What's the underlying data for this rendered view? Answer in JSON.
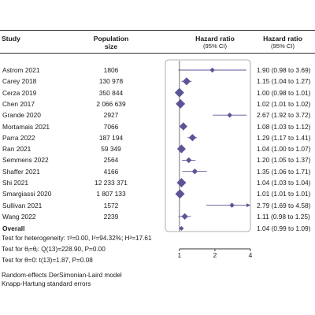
{
  "headers": {
    "study": "Study",
    "population_line1": "Population",
    "population_line2": "size",
    "hr_line1": "Hazard ratio",
    "hr_line2": "(95% CI)",
    "hrci_line1": "Hazard ratio",
    "hrci_line2": "(95% CI)"
  },
  "rows": [
    {
      "study": "Astrom 2021",
      "population": "1806",
      "ci_text": "1.90 (0.98 to 3.69)"
    },
    {
      "study": "Carey 2018",
      "population": "130 978",
      "ci_text": "1.15 (1.04 to 1.27)"
    },
    {
      "study": "Cerza 2019",
      "population": "350 844",
      "ci_text": "1.00 (0.98 to 1.01)"
    },
    {
      "study": "Chen 2017",
      "population": "2 066 639",
      "ci_text": "1.02 (1.01 to 1.02)"
    },
    {
      "study": "Grande 2020",
      "population": "2927",
      "ci_text": "2.67 (1.92 to 3.72)"
    },
    {
      "study": "Mortamais 2021",
      "population": "7066",
      "ci_text": "1.08 (1.03 to 1.12)"
    },
    {
      "study": "Parra 2022",
      "population": "187 194",
      "ci_text": "1.29 (1.17 to 1.41)"
    },
    {
      "study": "Ran 2021",
      "population": "59 349",
      "ci_text": "1.04 (1.00 to 1.07)"
    },
    {
      "study": "Semmens 2022",
      "population": "2564",
      "ci_text": "1.20 (1.05 to 1.37)"
    },
    {
      "study": "Shaffer 2021",
      "population": "4166",
      "ci_text": "1.35 (1.06 to 1.71)"
    },
    {
      "study": "Shi 2021",
      "population": "12 233 371",
      "ci_text": "1.04 (1.03 to 1.04)"
    },
    {
      "study": "Smargiassi 2020",
      "population": "1 807 133",
      "ci_text": "1.01 (1.01 to 1.01)"
    },
    {
      "study": "Sullivan 2021",
      "population": "1572",
      "ci_text": "2.79 (1.69 to 4.58)"
    },
    {
      "study": "Wang 2022",
      "population": "2239",
      "ci_text": "1.11 (0.98 to 1.25)"
    }
  ],
  "overall": {
    "study": "Overall",
    "ci_text": "1.04 (0.99 to 1.09)"
  },
  "footer": {
    "heterogeneity": "Test for heterogeneity: τ²=0.00, I²=94.32%; H²=17.61",
    "theta_i": "Test for θᵢ=θⱼ: Q(13)=228.90, P=0.00",
    "theta_0": "Test for θ=0: t(13)=1.87, P=0.08",
    "model_line1": "Random-effects DerSimonian-Laird model",
    "model_line2": "Knapp-Hartung standard errors"
  },
  "colors": {
    "marker": "#5b5497",
    "axis": "#333333",
    "text": "#1a1a1a"
  },
  "chart_data": {
    "type": "forest",
    "scale": "log",
    "xlim": [
      0.76,
      4
    ],
    "xticks": [
      1,
      2,
      4
    ],
    "reference_line": 1,
    "series": [
      {
        "study": "Astrom 2021",
        "hr": 1.9,
        "lo": 0.98,
        "hi": 3.69,
        "arrow_right": false
      },
      {
        "study": "Carey 2018",
        "hr": 1.15,
        "lo": 1.04,
        "hi": 1.27
      },
      {
        "study": "Cerza 2019",
        "hr": 1.0,
        "lo": 0.98,
        "hi": 1.01
      },
      {
        "study": "Chen 2017",
        "hr": 1.02,
        "lo": 1.01,
        "hi": 1.02
      },
      {
        "study": "Grande 2020",
        "hr": 2.67,
        "lo": 1.92,
        "hi": 3.72
      },
      {
        "study": "Mortamais 2021",
        "hr": 1.08,
        "lo": 1.03,
        "hi": 1.12
      },
      {
        "study": "Parra 2022",
        "hr": 1.29,
        "lo": 1.17,
        "hi": 1.41
      },
      {
        "study": "Ran 2021",
        "hr": 1.04,
        "lo": 1.0,
        "hi": 1.07
      },
      {
        "study": "Semmens 2022",
        "hr": 1.2,
        "lo": 1.05,
        "hi": 1.37
      },
      {
        "study": "Shaffer 2021",
        "hr": 1.35,
        "lo": 1.06,
        "hi": 1.71
      },
      {
        "study": "Shi 2021",
        "hr": 1.04,
        "lo": 1.03,
        "hi": 1.04
      },
      {
        "study": "Smargiassi 2020",
        "hr": 1.01,
        "lo": 1.01,
        "hi": 1.01
      },
      {
        "study": "Sullivan 2021",
        "hr": 2.79,
        "lo": 1.69,
        "hi": 4.58
      },
      {
        "study": "Wang 2022",
        "hr": 1.11,
        "lo": 0.98,
        "hi": 1.25
      }
    ],
    "overall": {
      "hr": 1.04,
      "lo": 0.99,
      "hi": 1.09
    },
    "weights": [
      0.4,
      0.8,
      1.0,
      1.0,
      0.4,
      0.8,
      0.7,
      0.9,
      0.5,
      0.5,
      1.0,
      1.0,
      0.4,
      0.6
    ]
  }
}
